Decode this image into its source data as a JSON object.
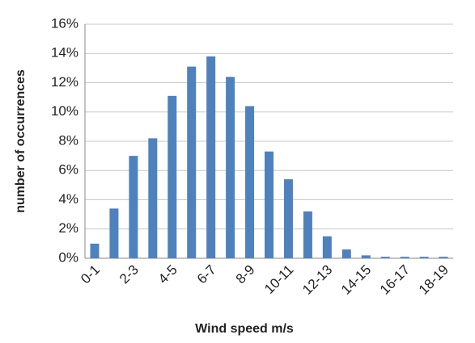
{
  "chart_data": {
    "type": "bar",
    "x_label": "Wind speed m/s",
    "y_label": "number of occurrences",
    "categories": [
      "0-1",
      null,
      "2-3",
      null,
      "4-5",
      null,
      "6-7",
      null,
      "8-9",
      null,
      "10-11",
      null,
      "12-13",
      null,
      "14-15",
      null,
      "16-17",
      null,
      "18-19"
    ],
    "values": [
      1.0,
      3.4,
      7.0,
      8.2,
      11.1,
      13.1,
      13.8,
      12.4,
      10.4,
      7.3,
      5.4,
      3.2,
      1.5,
      0.6,
      0.2,
      0.1,
      0.1,
      0.1,
      0.1
    ],
    "color": "#4f81bd",
    "ylim": [
      0,
      16
    ],
    "yticks": [
      {
        "value": 0,
        "label": "0%"
      },
      {
        "value": 2,
        "label": "2%"
      },
      {
        "value": 4,
        "label": "4%"
      },
      {
        "value": 6,
        "label": "6%"
      },
      {
        "value": 8,
        "label": "8%"
      },
      {
        "value": 10,
        "label": "10%"
      },
      {
        "value": 12,
        "label": "12%"
      },
      {
        "value": 14,
        "label": "14%"
      },
      {
        "value": 16,
        "label": "16%"
      }
    ],
    "grid": true
  }
}
